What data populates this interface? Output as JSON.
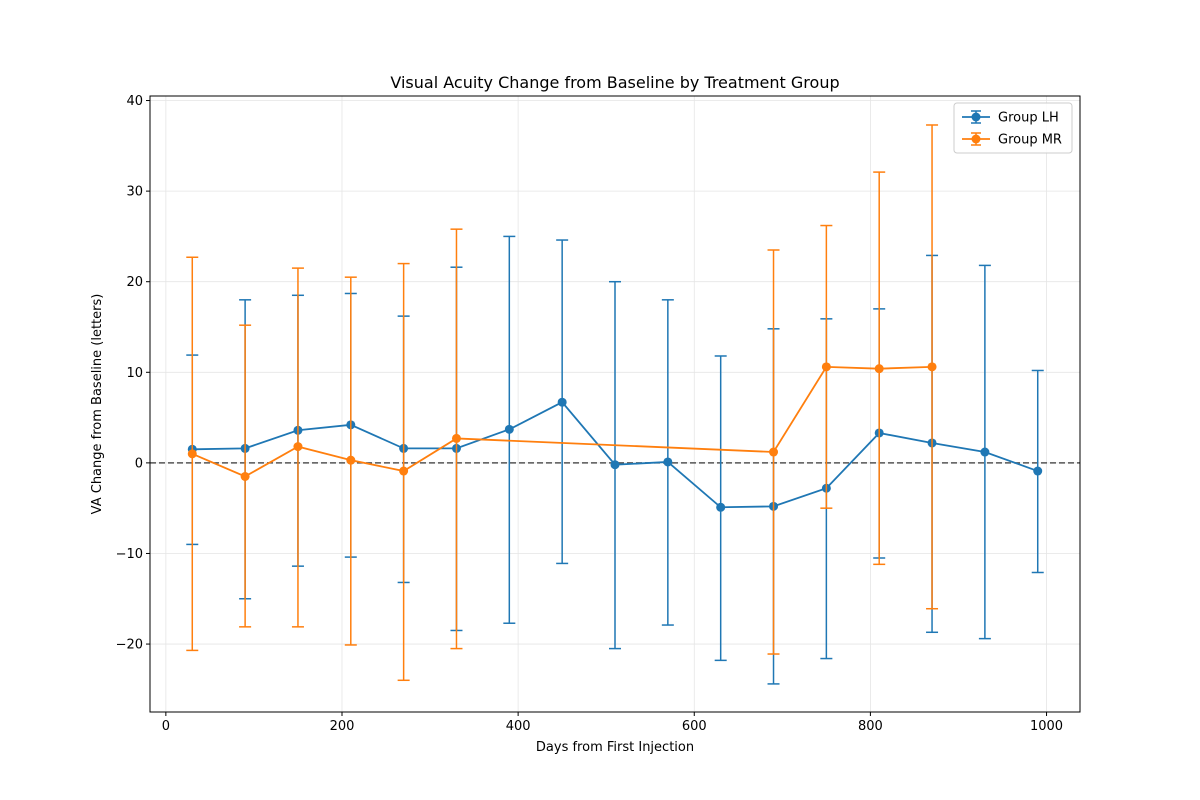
{
  "chart_data": {
    "type": "line",
    "subtype": "errorbar",
    "title": "Visual Acuity Change from Baseline by Treatment Group",
    "xlabel": "Days from First Injection",
    "ylabel": "VA Change from Baseline (letters)",
    "xlim": [
      -18,
      1038
    ],
    "ylim": [
      -27.5,
      40.5
    ],
    "xticks": [
      0,
      200,
      400,
      600,
      800,
      1000
    ],
    "yticks": [
      -20,
      -10,
      0,
      10,
      20,
      30,
      40
    ],
    "grid": true,
    "reference_line": {
      "y": 0,
      "style": "dashed",
      "color": "#555555"
    },
    "legend_position": "top-right",
    "series": [
      {
        "name": "Group LH",
        "color": "#1f77b4",
        "x": [
          30,
          90,
          150,
          210,
          270,
          330,
          390,
          450,
          510,
          570,
          630,
          690,
          750,
          810,
          870,
          930,
          990
        ],
        "y": [
          1.5,
          1.6,
          3.6,
          4.2,
          1.6,
          1.6,
          3.7,
          6.7,
          -0.2,
          0.1,
          -4.9,
          -4.8,
          -2.8,
          3.3,
          2.2,
          1.2,
          -0.9
        ],
        "lower": [
          -9.0,
          -15.0,
          -11.4,
          -10.4,
          -13.2,
          -18.5,
          -17.7,
          -11.1,
          -20.5,
          -17.9,
          -21.8,
          -24.4,
          -21.6,
          -10.5,
          -18.7,
          -19.4,
          -12.1
        ],
        "upper": [
          11.9,
          18.0,
          18.5,
          18.7,
          16.2,
          21.6,
          25.0,
          24.6,
          20.0,
          18.0,
          11.8,
          14.8,
          15.9,
          17.0,
          22.9,
          21.8,
          10.2
        ]
      },
      {
        "name": "Group MR",
        "color": "#ff7f0e",
        "x": [
          30,
          90,
          150,
          210,
          270,
          330,
          690,
          750,
          810,
          870
        ],
        "y": [
          1.0,
          -1.5,
          1.8,
          0.3,
          -0.9,
          2.7,
          1.2,
          10.6,
          10.4,
          10.6
        ],
        "lower": [
          -20.7,
          -18.1,
          -18.1,
          -20.1,
          -24.0,
          -20.5,
          -21.1,
          -5.0,
          -11.2,
          -16.1
        ],
        "upper": [
          22.7,
          15.2,
          21.5,
          20.5,
          22.0,
          25.8,
          23.5,
          26.2,
          32.1,
          37.3
        ]
      }
    ]
  }
}
